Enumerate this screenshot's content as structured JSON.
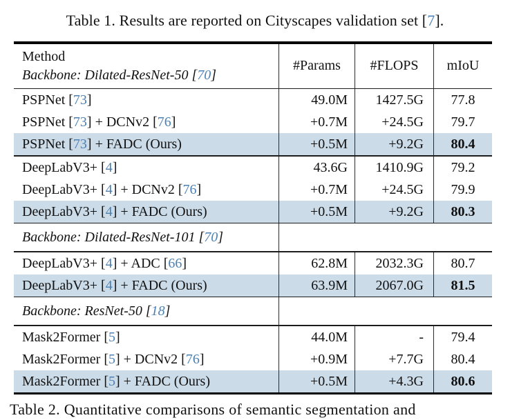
{
  "caption": "Table 1. Results are reported on Cityscapes validation set [7].",
  "table": {
    "header": {
      "method_label": "Method",
      "backbone_label": "Backbone: Dilated-ResNet-50 [70]",
      "columns": [
        "#Params",
        "#FLOPS",
        "mIoU"
      ]
    },
    "sections": [
      {
        "type": "rows",
        "rows": [
          {
            "method": "PSPNet [73]",
            "params": "49.0M",
            "flops": "1427.5G",
            "miou": "77.8",
            "highlight": false,
            "bold_miou": false
          },
          {
            "method": "PSPNet [73] + DCNv2 [76]",
            "params": "+0.7M",
            "flops": "+24.5G",
            "miou": "79.7",
            "highlight": false,
            "bold_miou": false
          },
          {
            "method": "PSPNet [73] + FADC (Ours)",
            "params": "+0.5M",
            "flops": "+9.2G",
            "miou": "80.4",
            "highlight": true,
            "bold_miou": true
          }
        ]
      },
      {
        "type": "rows",
        "rows": [
          {
            "method": "DeepLabV3+ [4]",
            "params": "43.6G",
            "flops": "1410.9G",
            "miou": "79.2",
            "highlight": false,
            "bold_miou": false
          },
          {
            "method": "DeepLabV3+ [4] + DCNv2 [76]",
            "params": "+0.7M",
            "flops": "+24.5G",
            "miou": "79.9",
            "highlight": false,
            "bold_miou": false
          },
          {
            "method": "DeepLabV3+ [4] + FADC (Ours)",
            "params": "+0.5M",
            "flops": "+9.2G",
            "miou": "80.3",
            "highlight": true,
            "bold_miou": true
          }
        ]
      },
      {
        "type": "subheader",
        "label": "Backbone: Dilated-ResNet-101 [70]"
      },
      {
        "type": "rows",
        "rows": [
          {
            "method": "DeepLabV3+ [4] + ADC [66]",
            "params": "62.8M",
            "flops": "2032.3G",
            "miou": "80.7",
            "highlight": false,
            "bold_miou": false
          },
          {
            "method": "DeepLabV3+ [4] + FADC (Ours)",
            "params": "63.9M",
            "flops": "2067.0G",
            "miou": "81.5",
            "highlight": true,
            "bold_miou": true
          }
        ]
      },
      {
        "type": "subheader",
        "label": "Backbone: ResNet-50 [18]"
      },
      {
        "type": "rows",
        "rows": [
          {
            "method": "Mask2Former [5]",
            "params": "44.0M",
            "flops": "-",
            "miou": "79.4",
            "highlight": false,
            "bold_miou": false
          },
          {
            "method": "Mask2Former [5] + DCNv2 [76]",
            "params": "+0.9M",
            "flops": "+7.7G",
            "miou": "80.4",
            "highlight": false,
            "bold_miou": false
          },
          {
            "method": "Mask2Former [5] + FADC (Ours)",
            "params": "+0.5M",
            "flops": "+4.3G",
            "miou": "80.6",
            "highlight": true,
            "bold_miou": true
          }
        ]
      }
    ]
  },
  "bottom_caption": "Table 2. Quantitative comparisons of semantic segmentation and",
  "colors": {
    "highlight": "#cbdbe8",
    "citation": "#4b80b4"
  }
}
